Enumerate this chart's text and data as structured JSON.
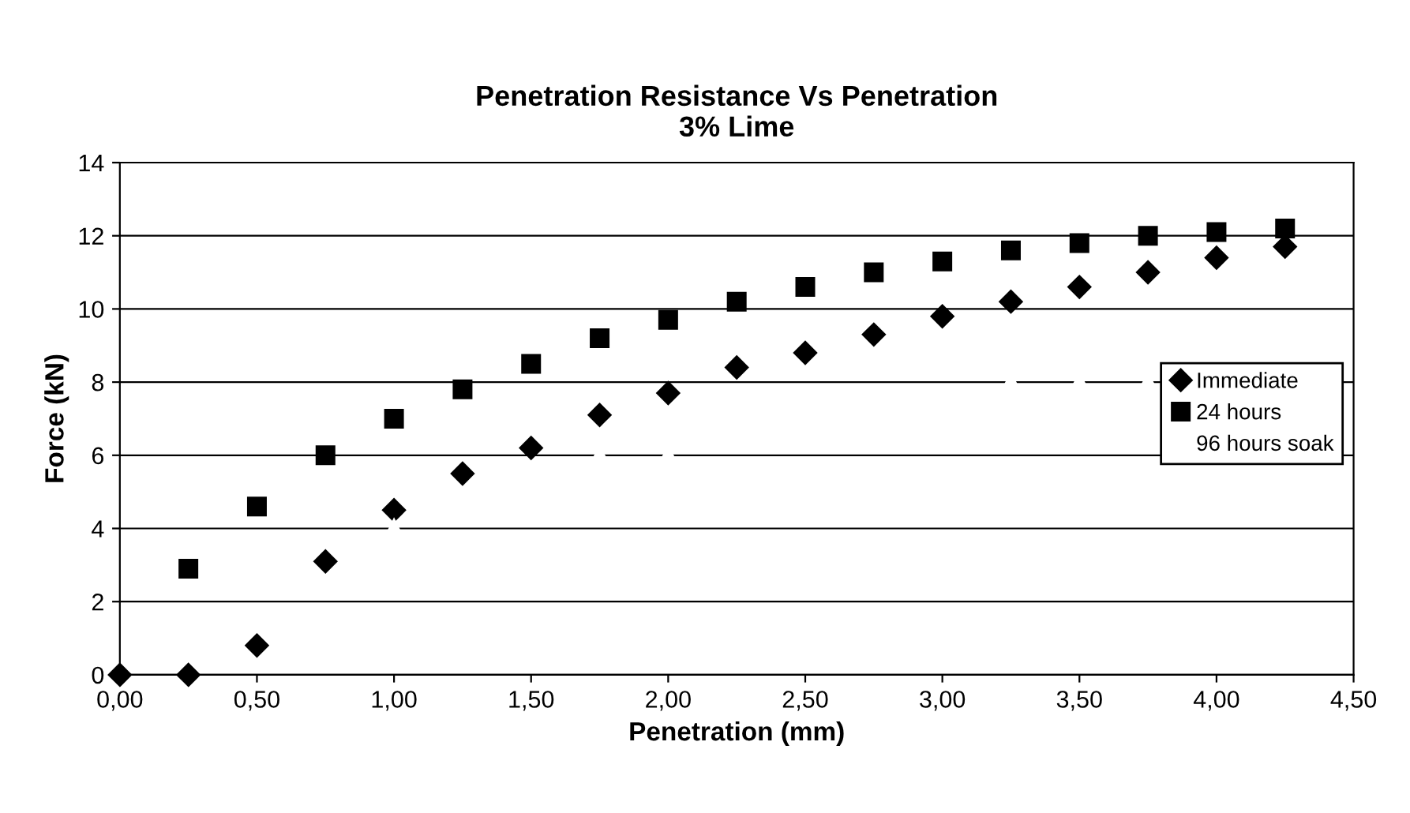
{
  "chart_data": {
    "type": "scatter",
    "title": "Penetration Resistance Vs Penetration\n3% Lime",
    "xlabel": "Penetration (mm)",
    "ylabel": "Force (kN)",
    "x": [
      0,
      0.25,
      0.5,
      0.75,
      1.0,
      1.25,
      1.5,
      1.75,
      2.0,
      2.25,
      2.5,
      2.75,
      3.0,
      3.25,
      3.5,
      3.75,
      4.0,
      4.25
    ],
    "series": [
      {
        "name": "Immediate",
        "color": "#000000",
        "marker": "diamond",
        "values": [
          0.0,
          0.0,
          0.8,
          3.1,
          4.5,
          5.5,
          6.2,
          7.1,
          7.7,
          8.4,
          8.8,
          9.3,
          9.8,
          10.2,
          10.6,
          11.0,
          11.4,
          11.7
        ]
      },
      {
        "name": "24 hours",
        "color": "#000000",
        "marker": "square",
        "values": [
          null,
          2.9,
          4.6,
          6.0,
          7.0,
          7.8,
          8.5,
          9.2,
          9.7,
          10.2,
          10.6,
          11.0,
          11.3,
          11.6,
          11.8,
          12.0,
          12.1,
          12.2
        ]
      },
      {
        "name": "96 hours soak",
        "color": "#ffffff",
        "marker": "triangle",
        "values": [
          null,
          null,
          null,
          null,
          4.0,
          null,
          null,
          6.0,
          6.0,
          null,
          null,
          null,
          null,
          8.0,
          8.0,
          8.0,
          null,
          null
        ]
      }
    ],
    "xlim": [
      0,
      4.5
    ],
    "xticks": [
      {
        "value": 0,
        "label": "0,00"
      },
      {
        "value": 0.5,
        "label": "0,50"
      },
      {
        "value": 1.0,
        "label": "1,00"
      },
      {
        "value": 1.5,
        "label": "1,50"
      },
      {
        "value": 2.0,
        "label": "2,00"
      },
      {
        "value": 2.5,
        "label": "2,50"
      },
      {
        "value": 3.0,
        "label": "3,00"
      },
      {
        "value": 3.5,
        "label": "3,50"
      },
      {
        "value": 4.0,
        "label": "4,00"
      },
      {
        "value": 4.5,
        "label": "4,50"
      }
    ],
    "ylim": [
      0,
      14
    ],
    "yticks": [
      0,
      2,
      4,
      6,
      8,
      10,
      12,
      14
    ],
    "grid": "y",
    "legend": "right"
  }
}
